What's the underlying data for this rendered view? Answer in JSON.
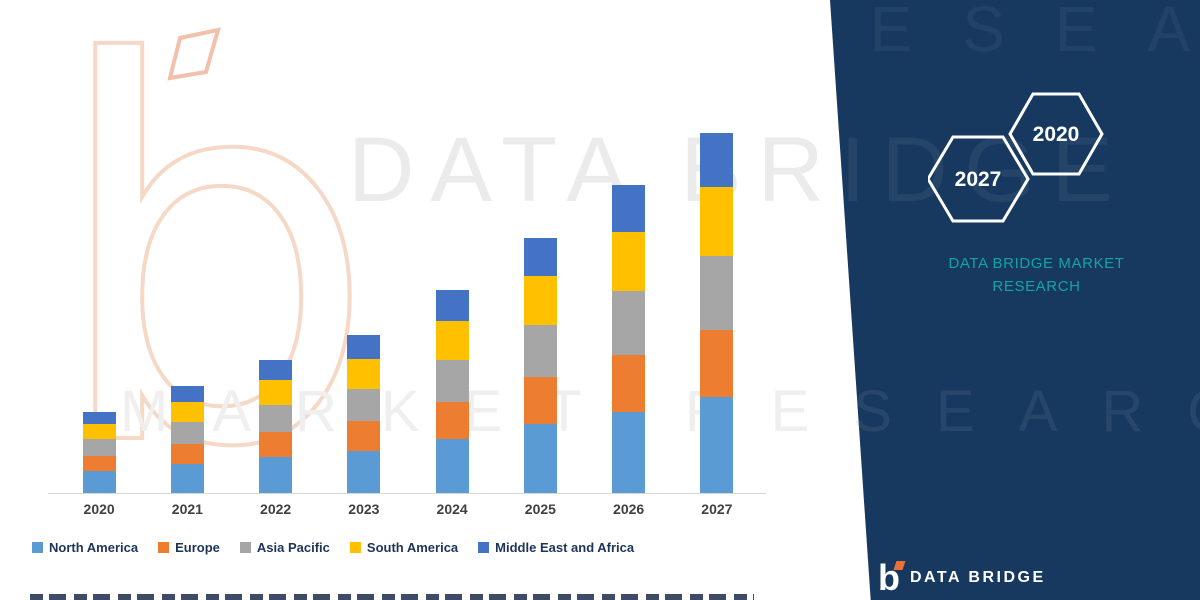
{
  "watermark": {
    "line1": "DATA BRIDGE",
    "line2": "MARKET RESEARCH"
  },
  "panel": {
    "bg_color": "#17395f",
    "accent_color": "#14a3a3",
    "hexagons": [
      {
        "year": "2027"
      },
      {
        "year": "2020"
      }
    ],
    "title_line1": "DATA BRIDGE MARKET",
    "title_line2": "RESEARCH",
    "footer_brand": "DATA BRIDGE",
    "footer_logo_letter": "b"
  },
  "chart_data": {
    "type": "bar",
    "stacked": true,
    "title": "",
    "categories": [
      "2020",
      "2021",
      "2022",
      "2023",
      "2024",
      "2025",
      "2026",
      "2027"
    ],
    "series": [
      {
        "name": "North America",
        "color": "#5B9BD5",
        "values": [
          0.45,
          0.58,
          0.72,
          0.85,
          1.1,
          1.4,
          1.65,
          1.95
        ]
      },
      {
        "name": "Europe",
        "color": "#ED7D31",
        "values": [
          0.3,
          0.4,
          0.5,
          0.6,
          0.75,
          0.95,
          1.15,
          1.35
        ]
      },
      {
        "name": "Asia Pacific",
        "color": "#A6A6A6",
        "values": [
          0.35,
          0.45,
          0.55,
          0.65,
          0.85,
          1.05,
          1.3,
          1.5
        ]
      },
      {
        "name": "South America",
        "color": "#FFC000",
        "values": [
          0.3,
          0.4,
          0.5,
          0.6,
          0.8,
          1.0,
          1.2,
          1.4
        ]
      },
      {
        "name": "Middle East and Africa",
        "color": "#4472C4",
        "values": [
          0.25,
          0.33,
          0.4,
          0.48,
          0.62,
          0.78,
          0.95,
          1.1
        ]
      }
    ],
    "ylim": [
      0,
      7.5
    ],
    "grid": false,
    "legend_position": "bottom",
    "axis_labels_visible": {
      "x": true,
      "y": false
    },
    "note": "No y-axis scale shown in image; values estimated from relative stacked bar heights"
  }
}
